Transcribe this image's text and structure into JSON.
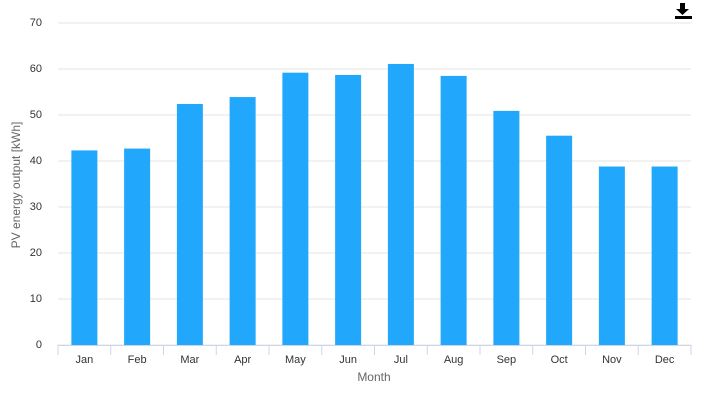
{
  "chart_data": {
    "type": "bar",
    "x_label": "Month",
    "y_label": "PV energy output [kWh]",
    "categories": [
      "Jan",
      "Feb",
      "Mar",
      "Apr",
      "May",
      "Jun",
      "Jul",
      "Aug",
      "Sep",
      "Oct",
      "Nov",
      "Dec"
    ],
    "values": [
      42.3,
      42.7,
      52.4,
      53.9,
      59.2,
      58.7,
      61.1,
      58.5,
      50.9,
      45.5,
      38.8,
      38.8
    ],
    "color": "#21a7fb",
    "ylim": [
      0,
      70
    ],
    "yticks": [
      0,
      10,
      20,
      30,
      40,
      50,
      60,
      70
    ],
    "grid": true
  }
}
